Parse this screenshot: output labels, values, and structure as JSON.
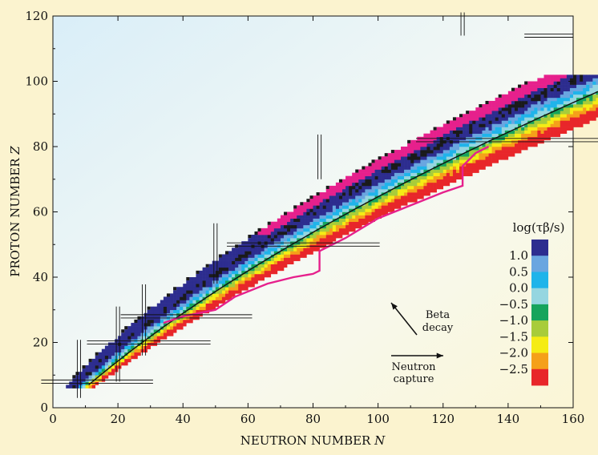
{
  "chart_data": {
    "type": "heatmap",
    "xlabel": "NEUTRON NUMBER",
    "xlabel_var": "N",
    "ylabel": "PROTON NUMBER",
    "ylabel_var": "Z",
    "xlim": [
      0,
      160
    ],
    "ylim": [
      0,
      120
    ],
    "xticks": [
      0,
      20,
      40,
      60,
      80,
      100,
      120,
      140,
      160
    ],
    "yticks": [
      0,
      20,
      40,
      60,
      80,
      100,
      120
    ],
    "grid": false,
    "colorbar": {
      "title": "log(τβ/s)",
      "placement": "right",
      "labels": [
        "1.0",
        "0.5",
        "0.0",
        "−0.5",
        "−1.0",
        "−1.5",
        "−2.0",
        "−2.5"
      ],
      "colors": [
        "#2d2d8f",
        "#6aa6e0",
        "#1fb4ea",
        "#95d6e0",
        "#16a45c",
        "#a8cc3a",
        "#f5ec14",
        "#f5a01a",
        "#e8262a"
      ]
    },
    "special_colors": {
      "stable": "#1a1a1a",
      "proton_rich": "#e6208c",
      "r_process_path": "#e6208c"
    },
    "magic_numbers": [
      8,
      20,
      28,
      50,
      82,
      126
    ],
    "annotations": [
      {
        "text_lines": [
          "Beta",
          "decay"
        ],
        "arrow_from": [
          105,
          22
        ],
        "arrow_to": [
          103,
          32
        ]
      },
      {
        "text_lines": [
          "Neutron",
          "capture"
        ],
        "arrow_from": [
          103,
          16
        ],
        "arrow_to": [
          120,
          16
        ]
      }
    ]
  }
}
